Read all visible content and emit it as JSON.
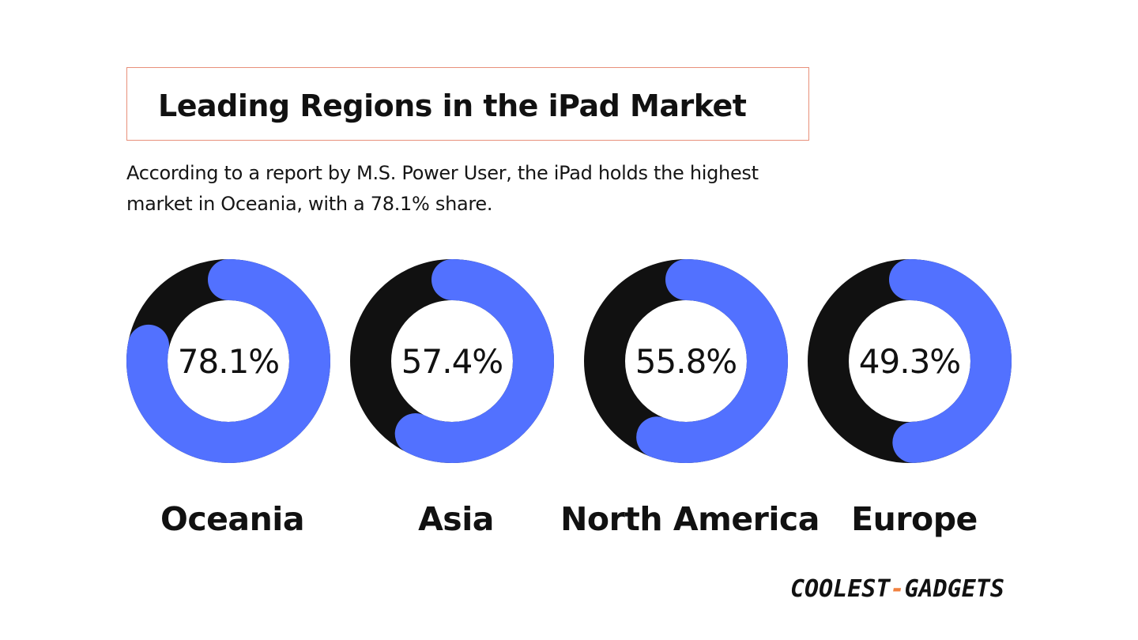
{
  "chart_data": {
    "type": "donut",
    "title": "Leading Regions in the iPad Market",
    "subtitle_lines": [
      "According to a report by M.S. Power User, the iPad holds the highest",
      "market in Oceania, with a 78.1% share."
    ],
    "categories": [
      "Oceania",
      "Asia",
      "North America",
      "Europe"
    ],
    "values": [
      78.1,
      57.4,
      55.8,
      49.3
    ],
    "value_labels": [
      "78.1%",
      "57.4%",
      "55.8%",
      "49.3%"
    ],
    "ylim": [
      0,
      100
    ],
    "legend": "none"
  },
  "logo": {
    "part1": "COOLEST",
    "dash": "-",
    "part2": "GADGETS"
  },
  "colors": {
    "share": "#5271ff",
    "remainder": "#111111",
    "title_border": "#e8907a",
    "logo_accent": "#f0813f"
  }
}
